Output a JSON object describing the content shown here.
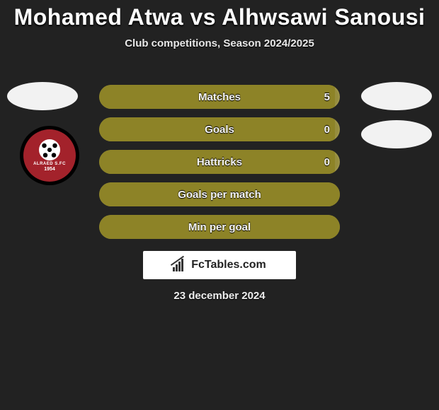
{
  "header": {
    "title": "Mohamed Atwa vs Alhwsawi Sanousi",
    "subtitle": "Club competitions, Season 2024/2025"
  },
  "avatar_bg": "#f2f2f2",
  "logo": {
    "outer_bg": "#000000",
    "inner_bg": "#a3222b",
    "text": "ALRAED S.FC",
    "year": "1954"
  },
  "stats": {
    "bar_fill_color": "#8d8327",
    "bar_bg_color": "#968d3d",
    "rows": [
      {
        "label": "Matches",
        "value": "5",
        "fill_percent": 98
      },
      {
        "label": "Goals",
        "value": "0",
        "fill_percent": 98
      },
      {
        "label": "Hattricks",
        "value": "0",
        "fill_percent": 98
      },
      {
        "label": "Goals per match",
        "value": "",
        "fill_percent": 100
      },
      {
        "label": "Min per goal",
        "value": "",
        "fill_percent": 100
      }
    ]
  },
  "brand": {
    "text": "FcTables.com",
    "box_bg": "#ffffff",
    "text_color": "#222222"
  },
  "date": "23 december 2024",
  "page_bg": "#222222"
}
